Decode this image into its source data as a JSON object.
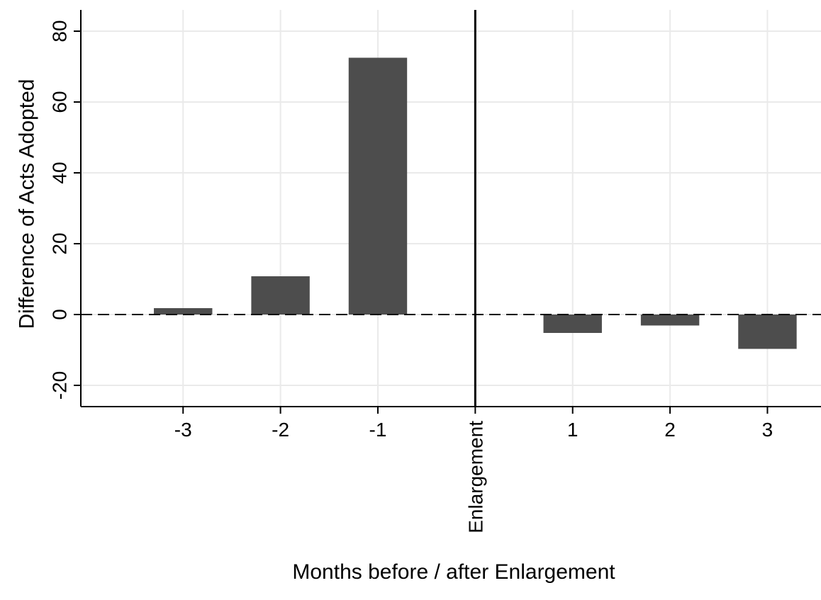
{
  "chart_data": {
    "type": "bar",
    "categories": [
      "-3",
      "-2",
      "-1",
      "1",
      "2",
      "3"
    ],
    "x": [
      -3,
      -2,
      -1,
      1,
      2,
      3
    ],
    "values": [
      1.8,
      10.8,
      72.5,
      -5.2,
      -3.1,
      -9.7
    ],
    "xlabel": "Months before / after Enlargement",
    "ylabel": "Difference of Acts Adopted",
    "ylim": [
      -26,
      86
    ],
    "yticks": [
      -20,
      0,
      20,
      40,
      60,
      80
    ],
    "xlim": [
      -4.05,
      3.55
    ],
    "grid": true,
    "reference_line": {
      "axis": "y",
      "value": 0,
      "style": "dashed"
    },
    "event_line": {
      "axis": "x",
      "value": 0,
      "label": "Enlargement"
    },
    "colors": {
      "bar": "#4d4d4d",
      "grid": "#eaeaea",
      "axis": "#000000"
    }
  }
}
